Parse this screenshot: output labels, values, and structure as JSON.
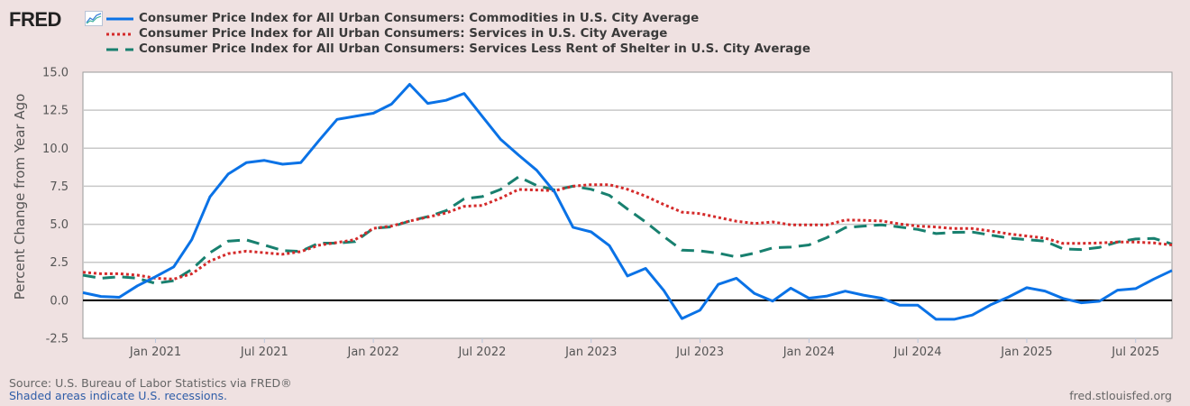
{
  "logo": {
    "text": "FRED",
    "icon": "fred-graph-icon"
  },
  "legend": [
    {
      "label": "Consumer Price Index for All Urban Consumers: Commodities in U.S. City Average",
      "style": "solid",
      "color": "#0a72e6"
    },
    {
      "label": "Consumer Price Index for All Urban Consumers: Services in U.S. City Average",
      "style": "dotted",
      "color": "#d42a2a"
    },
    {
      "label": "Consumer Price Index for All Urban Consumers: Services Less Rent of Shelter in U.S. City Average",
      "style": "dashed",
      "color": "#18806f"
    }
  ],
  "footer": {
    "source": "Source: U.S. Bureau of Labor Statistics via FRED®",
    "recessions": "Shaded areas indicate U.S. recessions.",
    "url": "fred.stlouisfed.org"
  },
  "chart_data": {
    "type": "line",
    "title": "",
    "xlabel": "",
    "ylabel": "Percent Change from Year Ago",
    "ylim": [
      -2.5,
      15.0
    ],
    "yticks": [
      "-2.5",
      "0.0",
      "2.5",
      "5.0",
      "7.5",
      "10.0",
      "12.5",
      "15.0"
    ],
    "ytick_values": [
      -2.5,
      0,
      2.5,
      5,
      7.5,
      10,
      12.5,
      15
    ],
    "xlim": [
      "2020-09",
      "2025-09"
    ],
    "xticks": [
      "Jan 2021",
      "Jul 2021",
      "Jan 2022",
      "Jul 2022",
      "Jan 2023",
      "Jul 2023",
      "Jan 2024",
      "Jul 2024",
      "Jan 2025",
      "Jul 2025"
    ],
    "xtick_months": [
      4,
      10,
      16,
      22,
      28,
      34,
      40,
      46,
      52,
      58
    ],
    "grid": true,
    "zero_line": true,
    "legend_position": "top",
    "x": [
      "2020-09",
      "2020-10",
      "2020-11",
      "2020-12",
      "2021-01",
      "2021-02",
      "2021-03",
      "2021-04",
      "2021-05",
      "2021-06",
      "2021-07",
      "2021-08",
      "2021-09",
      "2021-10",
      "2021-11",
      "2021-12",
      "2022-01",
      "2022-02",
      "2022-03",
      "2022-04",
      "2022-05",
      "2022-06",
      "2022-07",
      "2022-08",
      "2022-09",
      "2022-10",
      "2022-11",
      "2022-12",
      "2023-01",
      "2023-02",
      "2023-03",
      "2023-04",
      "2023-05",
      "2023-06",
      "2023-07",
      "2023-08",
      "2023-09",
      "2023-10",
      "2023-11",
      "2023-12",
      "2024-01",
      "2024-02",
      "2024-03",
      "2024-04",
      "2024-05",
      "2024-06",
      "2024-07",
      "2024-08",
      "2024-09",
      "2024-10",
      "2024-11",
      "2024-12",
      "2025-01",
      "2025-02",
      "2025-03",
      "2025-04",
      "2025-05",
      "2025-06",
      "2025-07",
      "2025-08",
      "2025-09"
    ],
    "series": [
      {
        "name": "Commodities",
        "values": [
          0.5,
          0.25,
          0.2,
          0.95,
          1.55,
          2.2,
          4.0,
          6.8,
          8.3,
          9.05,
          9.2,
          8.95,
          9.05,
          10.5,
          11.9,
          12.1,
          12.3,
          12.9,
          14.2,
          12.95,
          13.15,
          13.6,
          12.1,
          10.6,
          9.55,
          8.55,
          7.1,
          4.8,
          4.5,
          3.6,
          1.6,
          2.1,
          0.65,
          -1.2,
          -0.65,
          1.05,
          1.45,
          0.45,
          -0.05,
          0.8,
          0.14,
          0.28,
          0.6,
          0.34,
          0.14,
          -0.32,
          -0.32,
          -1.25,
          -1.25,
          -0.97,
          -0.3,
          0.22,
          0.83,
          0.61,
          0.12,
          -0.16,
          -0.06,
          0.67,
          0.77,
          1.4,
          1.96
        ]
      },
      {
        "name": "Services",
        "values": [
          1.85,
          1.75,
          1.75,
          1.65,
          1.45,
          1.39,
          1.75,
          2.58,
          3.07,
          3.23,
          3.13,
          3.03,
          3.2,
          3.62,
          3.8,
          3.99,
          4.73,
          4.88,
          5.21,
          5.47,
          5.74,
          6.18,
          6.24,
          6.71,
          7.29,
          7.25,
          7.21,
          7.5,
          7.6,
          7.6,
          7.3,
          6.85,
          6.3,
          5.8,
          5.7,
          5.45,
          5.2,
          5.05,
          5.15,
          4.96,
          4.96,
          4.96,
          5.28,
          5.26,
          5.22,
          5.02,
          4.88,
          4.82,
          4.72,
          4.72,
          4.56,
          4.37,
          4.23,
          4.09,
          3.74,
          3.74,
          3.77,
          3.83,
          3.83,
          3.77,
          3.64
        ]
      },
      {
        "name": "Services Less Rent of Shelter",
        "values": [
          1.65,
          1.45,
          1.55,
          1.45,
          1.11,
          1.29,
          2.04,
          3.13,
          3.89,
          3.97,
          3.63,
          3.27,
          3.22,
          3.76,
          3.76,
          3.86,
          4.73,
          4.83,
          5.21,
          5.5,
          5.89,
          6.67,
          6.82,
          7.29,
          8.12,
          7.55,
          7.25,
          7.5,
          7.3,
          6.9,
          6.0,
          5.15,
          4.2,
          3.3,
          3.25,
          3.1,
          2.85,
          3.1,
          3.45,
          3.5,
          3.64,
          4.13,
          4.78,
          4.88,
          4.96,
          4.82,
          4.66,
          4.39,
          4.47,
          4.49,
          4.29,
          4.09,
          3.99,
          3.89,
          3.38,
          3.34,
          3.48,
          3.83,
          4.03,
          4.07,
          3.7
        ]
      }
    ]
  }
}
